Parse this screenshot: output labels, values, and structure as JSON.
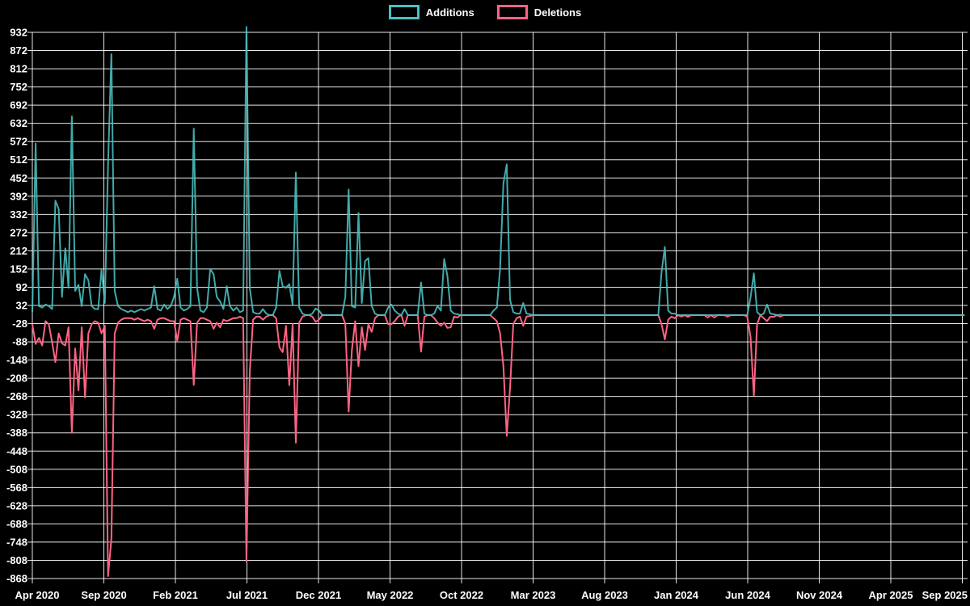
{
  "chart_data": {
    "type": "line",
    "title": "",
    "background_color": "#000000",
    "grid_color": "#ffffff",
    "text_color": "#ffffff",
    "grid": true,
    "legend_position": "top-center",
    "legend": [
      {
        "label": "Additions",
        "color": "#4bc0c0"
      },
      {
        "label": "Deletions",
        "color": "#ff6384"
      }
    ],
    "x_tick_labels": [
      "Apr 2020",
      "Sep 2020",
      "Feb 2021",
      "Jul 2021",
      "Dec 2021",
      "May 2022",
      "Oct 2022",
      "Mar 2023",
      "Aug 2023",
      "Jan 2024",
      "Jun 2024",
      "Nov 2024",
      "Apr 2025",
      "Sep 2025"
    ],
    "y_ticks": [
      932,
      872,
      812,
      752,
      692,
      632,
      572,
      512,
      452,
      392,
      332,
      272,
      212,
      152,
      92,
      32,
      -28,
      -88,
      -148,
      -208,
      -268,
      -328,
      -388,
      -448,
      -508,
      -568,
      -628,
      -688,
      -748,
      -808,
      -868
    ],
    "ylim": [
      -868,
      932
    ],
    "x_unit": "week",
    "weeks": 284,
    "series": [
      {
        "name": "Additions",
        "color": "#4bc0c0",
        "values": [
          10,
          565,
          30,
          25,
          35,
          30,
          20,
          377,
          350,
          60,
          220,
          90,
          655,
          80,
          100,
          30,
          135,
          115,
          30,
          20,
          20,
          150,
          40,
          500,
          860,
          80,
          30,
          20,
          15,
          10,
          15,
          10,
          15,
          20,
          15,
          20,
          25,
          95,
          20,
          15,
          35,
          20,
          30,
          60,
          120,
          25,
          15,
          20,
          30,
          615,
          90,
          15,
          10,
          25,
          152,
          135,
          60,
          45,
          20,
          95,
          30,
          15,
          25,
          10,
          15,
          950,
          90,
          10,
          5,
          5,
          20,
          5,
          0,
          0,
          25,
          146,
          95,
          90,
          102,
          35,
          470,
          25,
          5,
          0,
          0,
          5,
          22,
          15,
          0,
          0,
          0,
          0,
          0,
          0,
          0,
          60,
          414,
          30,
          25,
          337,
          40,
          178,
          188,
          30,
          5,
          0,
          0,
          0,
          25,
          35,
          15,
          5,
          0,
          20,
          0,
          0,
          0,
          0,
          108,
          5,
          0,
          0,
          5,
          30,
          15,
          185,
          129,
          15,
          5,
          3,
          0,
          0,
          0,
          0,
          0,
          0,
          0,
          0,
          0,
          0,
          15,
          25,
          155,
          435,
          497,
          50,
          10,
          5,
          5,
          40,
          5,
          3,
          0,
          0,
          0,
          0,
          0,
          0,
          0,
          0,
          0,
          0,
          0,
          0,
          0,
          0,
          0,
          0,
          0,
          0,
          0,
          0,
          0,
          0,
          0,
          0,
          0,
          0,
          0,
          0,
          0,
          0,
          0,
          0,
          0,
          0,
          0,
          0,
          0,
          0,
          0,
          142,
          225,
          15,
          5,
          5,
          0,
          0,
          0,
          0,
          0,
          0,
          0,
          0,
          0,
          0,
          0,
          0,
          0,
          0,
          0,
          0,
          0,
          0,
          0,
          0,
          0,
          0,
          58,
          138,
          10,
          0,
          5,
          35,
          5,
          3,
          0,
          2,
          0,
          0,
          0,
          0,
          0,
          0,
          0,
          0,
          0,
          0,
          0,
          0,
          0,
          0,
          0,
          0,
          0,
          0,
          0,
          0,
          0,
          0,
          0,
          0,
          0,
          0,
          0,
          0,
          0,
          0,
          0,
          0,
          0,
          0,
          0,
          0,
          0,
          0,
          0,
          0,
          0,
          0,
          0,
          0,
          0,
          0,
          0,
          0,
          0,
          0,
          0,
          0,
          0,
          0,
          0,
          0
        ]
      },
      {
        "name": "Deletions",
        "color": "#ff6384",
        "values": [
          -30,
          -95,
          -75,
          -100,
          -20,
          -30,
          -90,
          -155,
          -60,
          -93,
          -100,
          -40,
          -388,
          -110,
          -248,
          -40,
          -271,
          -60,
          -30,
          -20,
          -25,
          -60,
          -35,
          -860,
          -738,
          -60,
          -25,
          -15,
          -10,
          -10,
          -10,
          -15,
          -10,
          -15,
          -20,
          -15,
          -20,
          -45,
          -15,
          -10,
          -10,
          -15,
          -20,
          -20,
          -85,
          -15,
          -10,
          -15,
          -20,
          -230,
          -25,
          -10,
          -10,
          -15,
          -20,
          -45,
          -25,
          -40,
          -15,
          -20,
          -15,
          -10,
          -10,
          -5,
          -10,
          -812,
          -185,
          -15,
          -5,
          -5,
          -15,
          -5,
          0,
          0,
          -10,
          -106,
          -122,
          -35,
          -231,
          -30,
          -420,
          -25,
          -5,
          0,
          0,
          -5,
          -22,
          -15,
          0,
          0,
          0,
          0,
          0,
          0,
          0,
          -28,
          -318,
          -115,
          -20,
          -168,
          -40,
          -115,
          -30,
          -55,
          -10,
          0,
          0,
          0,
          -30,
          -30,
          -20,
          -5,
          0,
          -35,
          0,
          0,
          0,
          0,
          -120,
          -5,
          0,
          0,
          -10,
          -25,
          -35,
          -25,
          -42,
          -40,
          -5,
          -8,
          0,
          0,
          0,
          0,
          0,
          0,
          0,
          0,
          0,
          0,
          -10,
          -20,
          -60,
          -169,
          -398,
          -240,
          -30,
          -10,
          -5,
          -35,
          -5,
          -3,
          0,
          0,
          0,
          0,
          0,
          0,
          0,
          0,
          0,
          0,
          0,
          0,
          0,
          0,
          0,
          0,
          0,
          0,
          0,
          0,
          0,
          0,
          0,
          0,
          0,
          0,
          0,
          0,
          0,
          0,
          0,
          0,
          0,
          0,
          0,
          0,
          0,
          0,
          0,
          -30,
          -80,
          -15,
          -5,
          -10,
          0,
          -5,
          0,
          -6,
          0,
          0,
          0,
          0,
          0,
          -8,
          0,
          -8,
          0,
          0,
          0,
          -5,
          0,
          0,
          0,
          0,
          0,
          -5,
          -71,
          -265,
          -30,
          0,
          -10,
          -20,
          -5,
          -6,
          0,
          -5,
          0,
          0,
          0,
          0,
          0,
          0,
          0,
          0,
          0,
          0,
          0,
          0,
          0,
          0,
          0,
          0,
          0,
          0,
          0,
          0,
          0,
          0,
          0,
          0,
          0,
          0,
          0,
          0,
          0,
          0,
          0,
          0,
          0,
          0,
          0,
          0,
          0,
          0,
          0,
          0,
          0,
          0,
          0,
          0,
          0,
          0,
          0,
          0,
          0,
          0,
          0,
          0,
          0,
          0,
          0,
          0
        ]
      }
    ]
  }
}
